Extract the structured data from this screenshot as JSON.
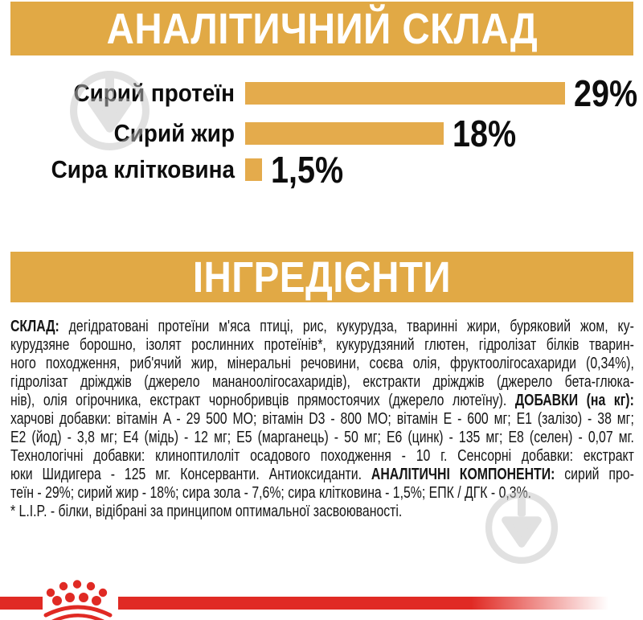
{
  "sections": {
    "analytical": {
      "title": "АНАЛІТИЧНИЙ СКЛАД"
    },
    "ingredients_header": {
      "title": "ІНГРЕДІЄНТИ"
    }
  },
  "chart_data": {
    "type": "bar",
    "orientation": "horizontal",
    "categories": [
      "Сирий протеїн",
      "Сирий жир",
      "Сира клітковина"
    ],
    "values": [
      29,
      18,
      1.5
    ],
    "value_labels": [
      "29%",
      "18%",
      "1,5%"
    ],
    "title": "АНАЛІТИЧНИЙ СКЛАД",
    "xlabel": "",
    "ylabel": "",
    "xlim": [
      0,
      29
    ],
    "grid": false,
    "legend": "none",
    "bar_color": "#e4ab4c"
  },
  "ingredients": {
    "lines": [
      {
        "j": true,
        "seg": [
          {
            "b": 1,
            "t": "СКЛАД: "
          },
          {
            "t": "дегідратовані протеїни м'яса птиці, рис, кукурудза, тваринні жири, буряковий жом, ку-"
          }
        ]
      },
      {
        "j": true,
        "seg": [
          {
            "t": "курудзяне борошно, ізолят рослинних протеїнів*, кукурудзяний глютен, гідролізат білків тварин-"
          }
        ]
      },
      {
        "j": true,
        "seg": [
          {
            "t": "ного походження, риб'ячий жир, мінеральні речовини, соєва олія, фруктоолігосахариди (0,34%),"
          }
        ]
      },
      {
        "j": true,
        "seg": [
          {
            "t": "гідролізат дріжджів (джерело мананоолігосахаридів), екстракти дріжджів (джерело бета-глюка-"
          }
        ]
      },
      {
        "j": true,
        "seg": [
          {
            "t": "нів), олія огірочника, екстракт чорнобривців прямостоячих (джерело лютеїну). "
          },
          {
            "b": 1,
            "t": "ДОБАВКИ (на кг):"
          }
        ]
      },
      {
        "j": true,
        "seg": [
          {
            "t": "харчові добавки: вітамін A - 29 500 МО; вітамін D3 - 800 МО; вітамін E - 600 мг; E1 (залізо) - 38 мг;"
          }
        ]
      },
      {
        "j": true,
        "seg": [
          {
            "t": "E2 (йод) - 3,8 мг; E4 (мідь) - 12 мг; E5 (марганець) - 50 мг; E6 (цинк) - 135 мг; E8 (селен) - 0,07 мг."
          }
        ]
      },
      {
        "j": true,
        "seg": [
          {
            "t": "Технологічні добавки: клиноптилоліт осадового походження - 10 г. Сенсорні добавки: екстракт"
          }
        ]
      },
      {
        "j": true,
        "seg": [
          {
            "t": "юки Шидигера - 125 мг. Консерванти. Антиоксиданти. "
          },
          {
            "b": 1,
            "t": "АНАЛІТИЧНІ КОМПОНЕНТИ: "
          },
          {
            "t": "сирий про-"
          }
        ]
      },
      {
        "j": false,
        "seg": [
          {
            "t": "теїн - 29%; сирий жир - 18%; сира зола - 7,6%; сира клітковина - 1,5%; ЕПК / ДГК - 0,3%."
          }
        ]
      },
      {
        "j": false,
        "seg": [
          {
            "t": "* L.I.P. - білки, відібрані за принципом оптимальної засвоюваності."
          }
        ]
      }
    ]
  },
  "colors": {
    "band_gold": "#e1a945",
    "bar_gold": "#e4ab4c",
    "brand_red": "#e02a24",
    "watermark_gray": "#c4c4c4",
    "text_black": "#111111"
  },
  "icons": {
    "watermark": "download-watermark-icon",
    "logo": "royal-canin-crown-logo"
  }
}
